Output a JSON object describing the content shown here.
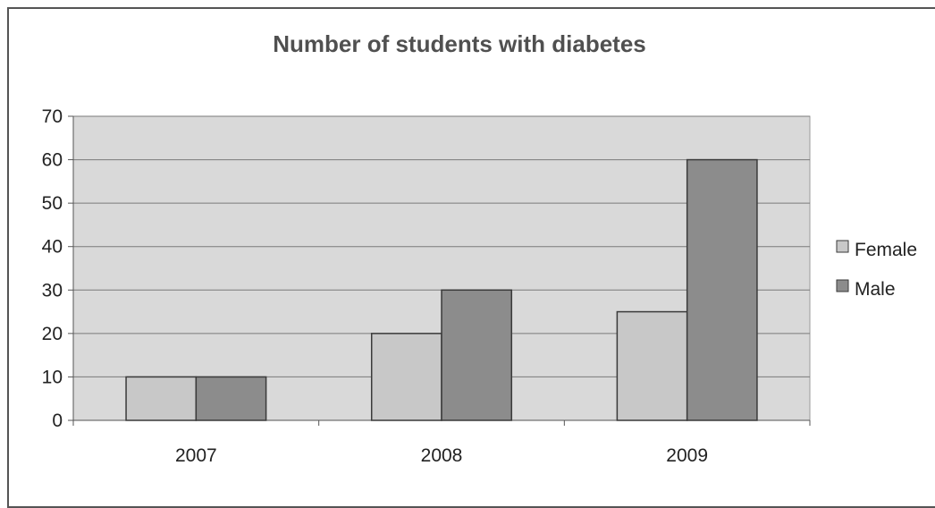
{
  "chart_data": {
    "type": "bar",
    "title": "Number of students with diabetes",
    "categories": [
      "2007",
      "2008",
      "2009"
    ],
    "series": [
      {
        "name": "Female",
        "values": [
          10,
          20,
          25
        ],
        "color": "#c8c8c8"
      },
      {
        "name": "Male",
        "values": [
          10,
          30,
          60
        ],
        "color": "#8c8c8c"
      }
    ],
    "ylim": [
      0,
      70
    ],
    "yticks": [
      0,
      10,
      20,
      30,
      40,
      50,
      60,
      70
    ],
    "grid": true,
    "legend_position": "right",
    "plot_background": "#d9d9d9"
  }
}
